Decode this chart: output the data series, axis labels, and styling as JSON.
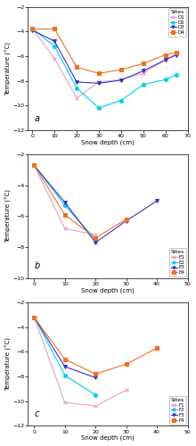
{
  "panel_a": {
    "label": "a",
    "xlabel": "Snow depth (cm)",
    "ylabel": "Temperature (°C)",
    "xlim": [
      -2,
      70
    ],
    "ylim": [
      -12,
      -2
    ],
    "yticks": [
      -12,
      -10,
      -8,
      -6,
      -4,
      -2
    ],
    "xticks": [
      0,
      10,
      20,
      30,
      40,
      50,
      60,
      70
    ],
    "legend_title": "Sites",
    "legend_loc": "upper right",
    "series": [
      {
        "label": "D1",
        "color": "#e8a0c8",
        "marker": "x",
        "x": [
          0,
          10,
          20,
          30,
          40,
          50,
          60,
          65
        ],
        "y": [
          -3.8,
          -6.2,
          -9.4,
          -8.1,
          -7.9,
          -7.4,
          -6.3,
          -5.8
        ]
      },
      {
        "label": "D2",
        "color": "#00cfef",
        "marker": "o",
        "x": [
          0,
          10,
          20,
          30,
          40,
          50,
          60,
          65
        ],
        "y": [
          -3.8,
          -5.2,
          -8.6,
          -10.2,
          -9.6,
          -8.3,
          -7.9,
          -7.5
        ]
      },
      {
        "label": "D3",
        "color": "#3535c8",
        "marker": "v",
        "x": [
          0,
          10,
          20,
          30,
          40,
          50,
          60,
          65
        ],
        "y": [
          -3.9,
          -4.8,
          -8.1,
          -8.2,
          -7.95,
          -7.2,
          -6.3,
          -5.9
        ]
      },
      {
        "label": "D4",
        "color": "#f07020",
        "marker": "s",
        "x": [
          0,
          10,
          20,
          30,
          40,
          50,
          60,
          65
        ],
        "y": [
          -3.8,
          -3.8,
          -6.9,
          -7.4,
          -7.1,
          -6.6,
          -5.9,
          -5.7
        ]
      }
    ]
  },
  "panel_b": {
    "label": "b",
    "xlabel": "Snow depth (cm)",
    "ylabel": "Temperature (°C)",
    "xlim": [
      -2,
      50
    ],
    "ylim": [
      -10,
      -2
    ],
    "yticks": [
      -10,
      -8,
      -6,
      -4,
      -2
    ],
    "xticks": [
      0,
      10,
      20,
      30,
      40,
      50
    ],
    "legend_title": "Sites",
    "legend_loc": "lower right",
    "series": [
      {
        "label": "E1",
        "color": "#e8a0c8",
        "marker": "x",
        "x": [
          0,
          10,
          20
        ],
        "y": [
          -2.7,
          -6.8,
          -7.2
        ]
      },
      {
        "label": "E2",
        "color": "#00cfef",
        "marker": "o",
        "x": [
          0,
          10,
          20
        ],
        "y": [
          -2.7,
          -5.3,
          -7.5
        ]
      },
      {
        "label": "E3",
        "color": "#3535c8",
        "marker": "v",
        "x": [
          0,
          10,
          20,
          30,
          40
        ],
        "y": [
          -2.7,
          -5.1,
          -7.7,
          -6.3,
          -5.0
        ]
      },
      {
        "label": "E4",
        "color": "#f07020",
        "marker": "s",
        "x": [
          0,
          10,
          20,
          30
        ],
        "y": [
          -2.7,
          -5.9,
          -7.4,
          -6.2
        ]
      }
    ]
  },
  "panel_c": {
    "label": "c",
    "xlabel": "Snow depth (cm)",
    "ylabel": "Temperature (°C)",
    "xlim": [
      -2,
      50
    ],
    "ylim": [
      -12,
      -2
    ],
    "yticks": [
      -12,
      -10,
      -8,
      -6,
      -4,
      -2
    ],
    "xticks": [
      0,
      10,
      20,
      30,
      40,
      50
    ],
    "legend_title": "Sites",
    "legend_loc": "lower right",
    "series": [
      {
        "label": "F1",
        "color": "#e8a0c8",
        "marker": "x",
        "x": [
          0,
          10,
          20,
          30
        ],
        "y": [
          -3.2,
          -10.1,
          -10.4,
          -9.1
        ]
      },
      {
        "label": "F2",
        "color": "#00cfef",
        "marker": "o",
        "x": [
          0,
          10,
          20
        ],
        "y": [
          -3.2,
          -7.9,
          -9.5
        ]
      },
      {
        "label": "F3",
        "color": "#3535c8",
        "marker": "v",
        "x": [
          0,
          10,
          20
        ],
        "y": [
          -3.2,
          -7.2,
          -8.1
        ]
      },
      {
        "label": "F4",
        "color": "#f07020",
        "marker": "s",
        "x": [
          0,
          10,
          20,
          30,
          40
        ],
        "y": [
          -3.2,
          -6.6,
          -7.8,
          -7.0,
          -5.7
        ]
      }
    ]
  }
}
